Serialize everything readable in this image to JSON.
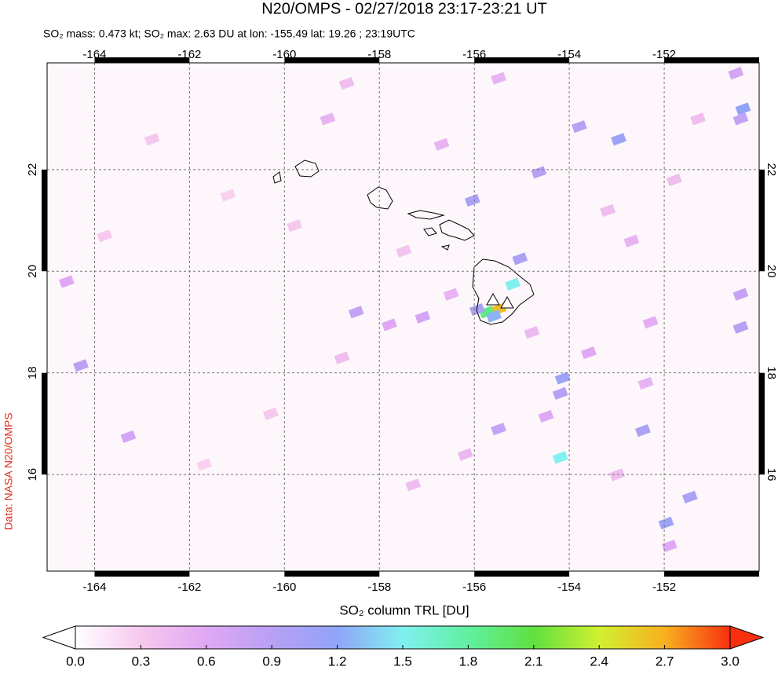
{
  "title": "N20/OMPS - 02/27/2018 23:17-23:21 UT",
  "subtitle": "SO₂ mass: 0.473 kt; SO₂ max: 2.63 DU at lon: -155.49 lat: 19.26 ; 23:19UTC",
  "credit": "Data: NASA N20/OMPS",
  "map": {
    "type": "heatmap",
    "xlim": [
      -165,
      -150
    ],
    "ylim": [
      14.1,
      24.1
    ],
    "xticks": [
      -164,
      -162,
      -160,
      -158,
      -156,
      -154,
      -152
    ],
    "yticks": [
      16,
      18,
      20,
      22
    ],
    "grid": true,
    "pixels": {
      "lon": [
        -155.49,
        -155.75,
        -155.6,
        -155.95,
        -155.2,
        -154.2,
        -154.15,
        -154.2,
        -155.05,
        -156.05,
        -154.65,
        -152.97,
        -153.8,
        -150.35,
        -150.4,
        -151.47,
        -151.97,
        -152.46,
        -150.4,
        -150.4,
        -164.3,
        -163.3,
        -164.6,
        -158.5,
        -157.8,
        -157.1,
        -156.5,
        -155.5,
        -154.5,
        -152.4,
        -153.6,
        -152.7,
        -153.2,
        -151.8,
        -151.3,
        -156.7,
        -159.1,
        -159.8,
        -161.2,
        -162.8,
        -163.8,
        -160.3,
        -161.7,
        -157.3,
        -156.2,
        -153.0,
        -152.3,
        -154.8,
        -157.5,
        -158.8,
        -151.9,
        -150.5,
        -155.5,
        -158.7
      ],
      "lat": [
        19.26,
        19.2,
        19.12,
        19.25,
        19.75,
        16.34,
        17.9,
        17.6,
        20.25,
        21.4,
        21.95,
        22.6,
        22.85,
        23.2,
        23.0,
        15.56,
        15.05,
        16.87,
        18.9,
        19.55,
        18.15,
        16.75,
        19.8,
        19.2,
        18.95,
        19.1,
        19.55,
        16.9,
        17.15,
        17.8,
        18.4,
        20.6,
        21.2,
        21.8,
        23.0,
        22.5,
        23.0,
        20.9,
        21.5,
        22.6,
        20.7,
        17.2,
        16.2,
        15.8,
        16.4,
        16.0,
        19.0,
        18.8,
        20.4,
        18.3,
        14.6,
        23.9,
        23.8,
        23.7
      ],
      "values": [
        2.63,
        1.9,
        1.25,
        1.0,
        1.5,
        1.5,
        1.1,
        0.9,
        1.0,
        1.0,
        0.9,
        1.1,
        0.9,
        1.2,
        0.8,
        1.0,
        1.1,
        1.0,
        0.9,
        0.8,
        0.85,
        0.7,
        0.6,
        0.8,
        0.6,
        0.7,
        0.5,
        0.8,
        0.6,
        0.5,
        0.6,
        0.5,
        0.4,
        0.4,
        0.4,
        0.5,
        0.5,
        0.3,
        0.25,
        0.3,
        0.3,
        0.3,
        0.25,
        0.4,
        0.45,
        0.4,
        0.55,
        0.45,
        0.35,
        0.4,
        0.6,
        0.7,
        0.5,
        0.4
      ]
    }
  },
  "colorbar": {
    "label": "SO₂ column TRL [DU]",
    "lim": [
      0,
      3
    ],
    "colors": [
      "#ffffff",
      "#f6c8ee",
      "#e0a8f4",
      "#b8a0f4",
      "#90a4f8",
      "#80f0f0",
      "#60f0a0",
      "#60e040",
      "#d0f030",
      "#f8b020",
      "#f83010"
    ],
    "ticks": [
      {
        "value": 0,
        "label": "0.0"
      },
      0.3,
      0.6,
      0.9,
      1.2,
      1.5,
      1.8,
      2.1,
      2.4,
      2.7,
      {
        "value": 3,
        "label": "3.0"
      }
    ]
  }
}
